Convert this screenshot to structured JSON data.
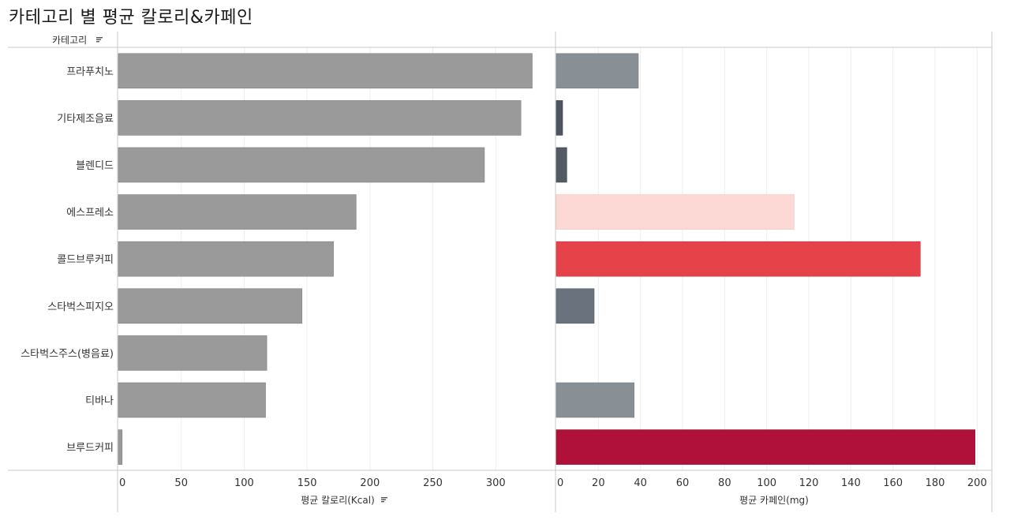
{
  "title": "카테고리 별 평균 칼로리&카페인",
  "colors": {
    "calorie_bar": "#9a9a9a",
    "calorie_bar_stroke": "#7f7f7f",
    "axis_line": "#c8c8c8",
    "grid_line": "#eeeeee",
    "text": "#333333",
    "sort_icon": "#555555"
  },
  "chart_data": [
    {
      "type": "bar",
      "orientation": "horizontal",
      "category_header": "카테고리",
      "categories": [
        "프라푸치노",
        "기타제조음료",
        "블렌디드",
        "에스프레소",
        "콜드브루커피",
        "스타벅스피지오",
        "스타벅스주스(병음료)",
        "티바나",
        "브루드커피"
      ],
      "values": [
        329,
        320,
        291,
        189,
        171,
        146,
        118,
        117,
        3
      ],
      "xlabel": "평균 칼로리(Kcal)",
      "xlim": [
        0,
        345
      ],
      "ticks": [
        0,
        50,
        100,
        150,
        200,
        250,
        300
      ],
      "sorted": true,
      "grid": true
    },
    {
      "type": "bar",
      "orientation": "horizontal",
      "categories": [
        "프라푸치노",
        "기타제조음료",
        "블렌디드",
        "에스프레소",
        "콜드브루커피",
        "스타벅스피지오",
        "스타벅스주스(병음료)",
        "티바나",
        "브루드커피"
      ],
      "values": [
        39,
        3,
        5,
        113,
        173,
        18,
        0,
        37,
        199
      ],
      "bar_colors": [
        "#889095",
        "#4e5462",
        "#535a64",
        "#fdd9d6",
        "#e5424a",
        "#6a727d",
        "#ffffff",
        "#889095",
        "#b0113a"
      ],
      "bar_strokes": [
        "#787f84",
        "#3e4452",
        "#434a54",
        "#f0c4c0",
        "#cf3038",
        "#5a626d",
        "#ffffff",
        "#787f84",
        "#8f0a2e"
      ],
      "xlabel": "평균 카페인(mg)",
      "xlim": [
        0,
        207
      ],
      "ticks": [
        0,
        20,
        40,
        60,
        80,
        100,
        120,
        140,
        160,
        180,
        200
      ],
      "grid": true
    }
  ]
}
